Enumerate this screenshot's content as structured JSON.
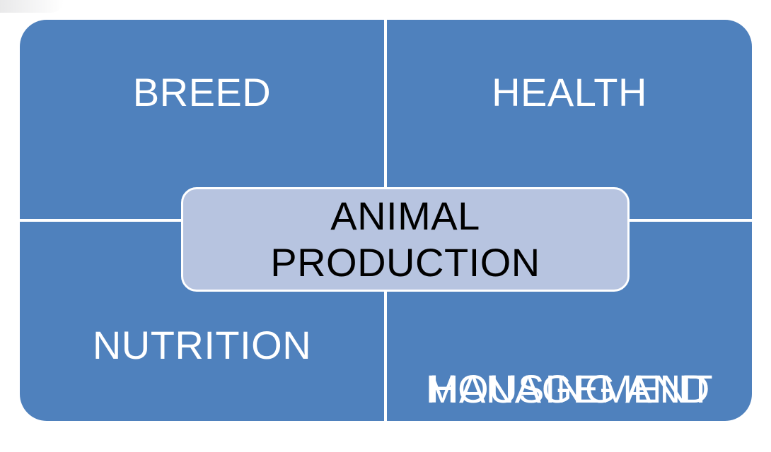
{
  "diagram": {
    "center": {
      "line1": "ANIMAL",
      "line2": "PRODUCTION"
    },
    "quadrants": {
      "top_left": "BREED",
      "top_right": "HEALTH",
      "bottom_left": "NUTRITION",
      "bottom_right_line1": "HOUSING AND",
      "bottom_right_line2": "MANAGEMENT"
    }
  },
  "colors": {
    "quadrant_fill": "#4f81bd",
    "center_fill": "#b7c4e0",
    "divider": "#ffffff"
  }
}
